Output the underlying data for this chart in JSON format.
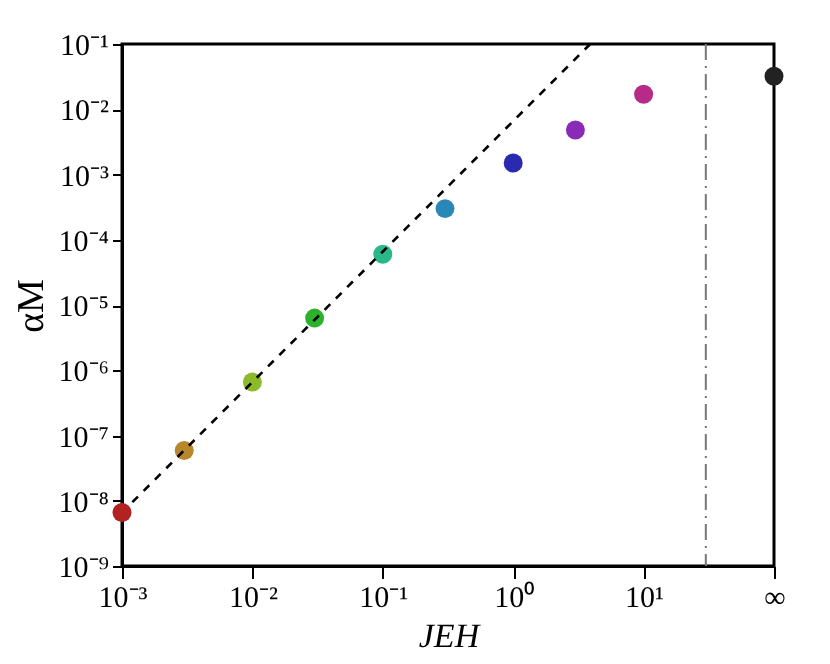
{
  "chart_data": {
    "type": "scatter",
    "xlabel": "JEH",
    "ylabel": "αM",
    "x": [
      0.001,
      0.003,
      0.01,
      0.03,
      0.1,
      0.3,
      1,
      3,
      10,
      100
    ],
    "series": [
      {
        "marker": "circle",
        "colors": [
          "#b22222",
          "#b8862b",
          "#8cba2a",
          "#2db22d",
          "#2ab88a",
          "#2a88b8",
          "#2a2ab0",
          "#8a2ab8",
          "#b82a88",
          "#222222"
        ],
        "values": [
          6.6e-09,
          5.9e-08,
          6.6e-07,
          6.3e-06,
          6e-05,
          0.0003,
          0.0015,
          0.0048,
          0.017,
          0.032
        ]
      },
      {
        "type": "line",
        "color": "#000000",
        "line_style": "dashed",
        "x": [
          0.0012,
          3.9
        ],
        "values": [
          9.5e-09,
          0.1
        ]
      }
    ],
    "log": "xy",
    "grid": false,
    "xlim": [
      0.001,
      100
    ],
    "ylim": [
      1e-09,
      0.1
    ],
    "xticks": [
      {
        "value": 0.001,
        "label": "10⁻³"
      },
      {
        "value": 0.01,
        "label": "10⁻²"
      },
      {
        "value": 0.1,
        "label": "10⁻¹"
      },
      {
        "value": 1,
        "label": "10⁰"
      },
      {
        "value": 10,
        "label": "10¹"
      },
      {
        "value": 100,
        "label": "∞"
      }
    ],
    "yticks": [
      {
        "value": 1e-09,
        "label": "10⁻⁹"
      },
      {
        "value": 1e-08,
        "label": "10⁻⁸"
      },
      {
        "value": 1e-07,
        "label": "10⁻⁷"
      },
      {
        "value": 1e-06,
        "label": "10⁻⁶"
      },
      {
        "value": 1e-05,
        "label": "10⁻⁵"
      },
      {
        "value": 0.0001,
        "label": "10⁻⁴"
      },
      {
        "value": 0.001,
        "label": "10⁻³"
      },
      {
        "value": 0.01,
        "label": "10⁻²"
      },
      {
        "value": 0.1,
        "label": "10⁻¹"
      }
    ],
    "ref_lines": [
      {
        "axis": "x",
        "value": 30,
        "color": "#777777",
        "line_style": "dashdot"
      }
    ]
  }
}
